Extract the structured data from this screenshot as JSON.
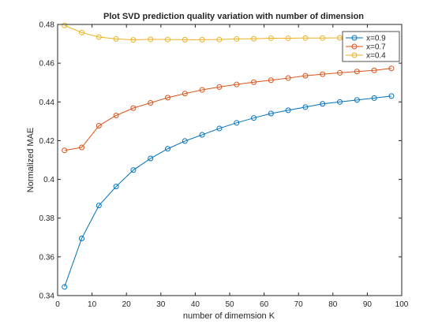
{
  "chart_data": {
    "type": "line",
    "title": "Plot SVD prediction quality variation with number of dimension",
    "xlabel": "number of dimemsion K",
    "ylabel": "Normalized MAE",
    "xlim": [
      0,
      100
    ],
    "ylim": [
      0.34,
      0.48
    ],
    "xticks": [
      0,
      10,
      20,
      30,
      40,
      50,
      60,
      70,
      80,
      90,
      100
    ],
    "yticks": [
      0.34,
      0.36,
      0.38,
      0.4,
      0.42,
      0.44,
      0.46,
      0.48
    ],
    "xtick_labels": [
      "0",
      "10",
      "20",
      "30",
      "40",
      "50",
      "60",
      "70",
      "80",
      "90",
      "100"
    ],
    "ytick_labels": [
      "0.34",
      "0.36",
      "0.38",
      "0.4",
      "0.42",
      "0.44",
      "0.46",
      "0.48"
    ],
    "grid": false,
    "legend_position": "top-right",
    "x": [
      2,
      7,
      12,
      17,
      22,
      27,
      32,
      37,
      42,
      47,
      52,
      57,
      62,
      67,
      72,
      77,
      82,
      87,
      92,
      97
    ],
    "series": [
      {
        "name": "x=0.9",
        "color": "#0072BD",
        "marker": "circle",
        "values": [
          0.3445,
          0.3695,
          0.3865,
          0.3963,
          0.4048,
          0.4108,
          0.4158,
          0.4198,
          0.423,
          0.4263,
          0.4292,
          0.4317,
          0.434,
          0.4357,
          0.4373,
          0.439,
          0.44,
          0.441,
          0.442,
          0.443
        ]
      },
      {
        "name": "x=0.7",
        "color": "#D95319",
        "marker": "circle",
        "values": [
          0.415,
          0.4165,
          0.4277,
          0.433,
          0.4368,
          0.4395,
          0.4422,
          0.4443,
          0.4462,
          0.4477,
          0.449,
          0.4502,
          0.4512,
          0.4523,
          0.4535,
          0.4543,
          0.455,
          0.4557,
          0.4563,
          0.4573
        ]
      },
      {
        "name": "x=0.4",
        "color": "#EDB120",
        "marker": "circle",
        "values": [
          0.4795,
          0.4758,
          0.4735,
          0.4725,
          0.472,
          0.4723,
          0.4722,
          0.4721,
          0.4721,
          0.4722,
          0.4725,
          0.4726,
          0.4729,
          0.4729,
          0.473,
          0.473,
          0.4731,
          0.4731,
          0.4731,
          0.473
        ]
      }
    ]
  }
}
